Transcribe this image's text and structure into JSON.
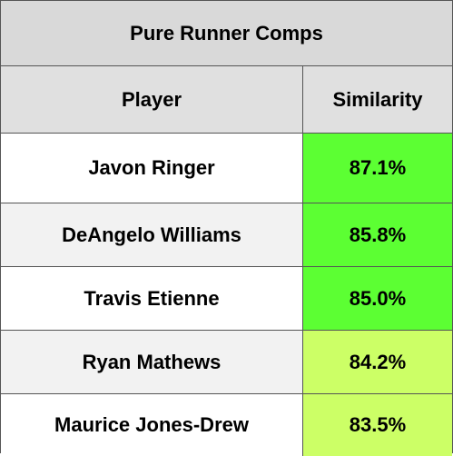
{
  "table": {
    "title": "Pure Runner Comps",
    "headers": {
      "player": "Player",
      "similarity": "Similarity"
    },
    "rows": [
      {
        "player": "Javon Ringer",
        "similarity": "87.1%",
        "color": "#5cff33",
        "row_bg": "#ffffff"
      },
      {
        "player": "DeAngelo Williams",
        "similarity": "85.8%",
        "color": "#5cff33",
        "row_bg": "#f2f2f2"
      },
      {
        "player": "Travis Etienne",
        "similarity": "85.0%",
        "color": "#5cff33",
        "row_bg": "#ffffff"
      },
      {
        "player": "Ryan Mathews",
        "similarity": "84.2%",
        "color": "#ccff66",
        "row_bg": "#f2f2f2"
      },
      {
        "player": "Maurice Jones-Drew",
        "similarity": "83.5%",
        "color": "#ccff66",
        "row_bg": "#ffffff"
      }
    ]
  }
}
